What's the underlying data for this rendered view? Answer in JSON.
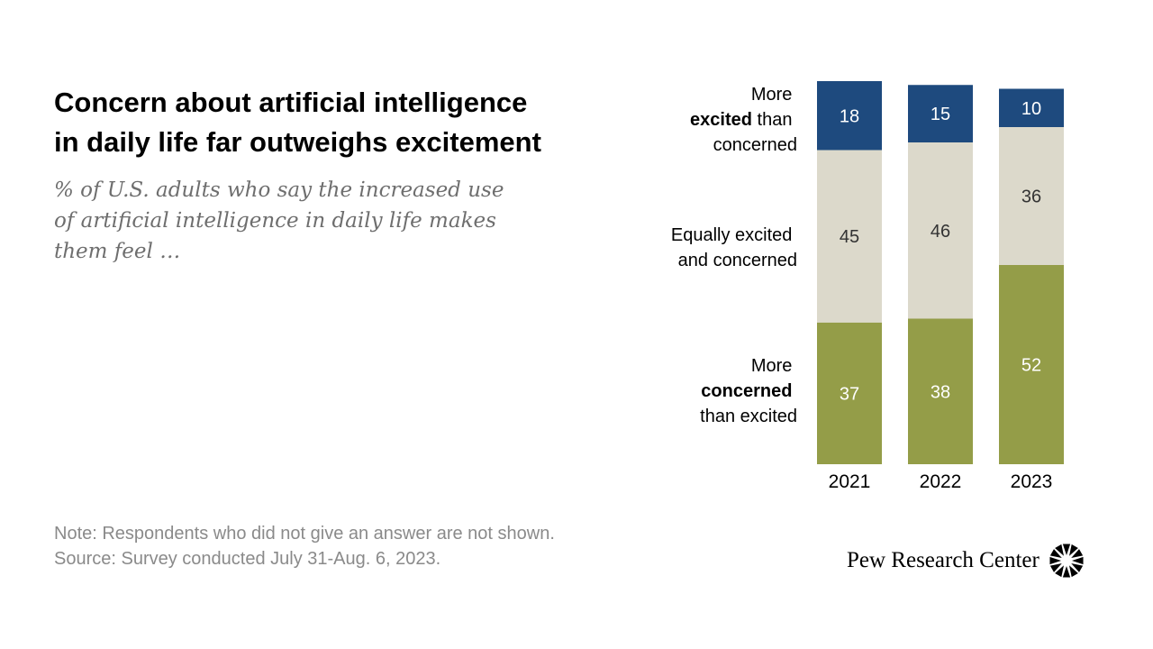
{
  "title_lines": [
    "Concern about artificial intelligence",
    "in daily life far outweighs excitement"
  ],
  "subtitle_lines": [
    "% of U.S. adults who say the increased use",
    "of artificial intelligence in daily life makes",
    "them feel …"
  ],
  "note": "Note: Respondents who did not give an answer are not shown.",
  "source": "Source: Survey conducted July 31-Aug. 6, 2023.",
  "brand": {
    "name": "Pew Research Center",
    "logo_icon": "pew-sunburst-icon"
  },
  "categories_labels": {
    "excited": {
      "line1": "More",
      "bold": "excited",
      "rest": " than",
      "line3": "concerned"
    },
    "equal": {
      "line1": "Equally excited",
      "line2": "and concerned"
    },
    "concerned": {
      "line1": "More",
      "bold": "concerned",
      "line3": "than excited"
    }
  },
  "chart_data": {
    "type": "bar",
    "stacked": true,
    "categories": [
      "2021",
      "2022",
      "2023"
    ],
    "series": [
      {
        "name": "More concerned than excited",
        "values": [
          37,
          38,
          52
        ],
        "color": "#949d48",
        "text_color": "#ffffff"
      },
      {
        "name": "Equally excited and concerned",
        "values": [
          45,
          46,
          36
        ],
        "color": "#dcd9cb",
        "text_color": "#333333"
      },
      {
        "name": "More excited than concerned",
        "values": [
          18,
          15,
          10
        ],
        "color": "#1e4a7e",
        "text_color": "#ffffff"
      }
    ],
    "ylim": [
      0,
      100
    ],
    "grid": false,
    "legend": "left"
  }
}
